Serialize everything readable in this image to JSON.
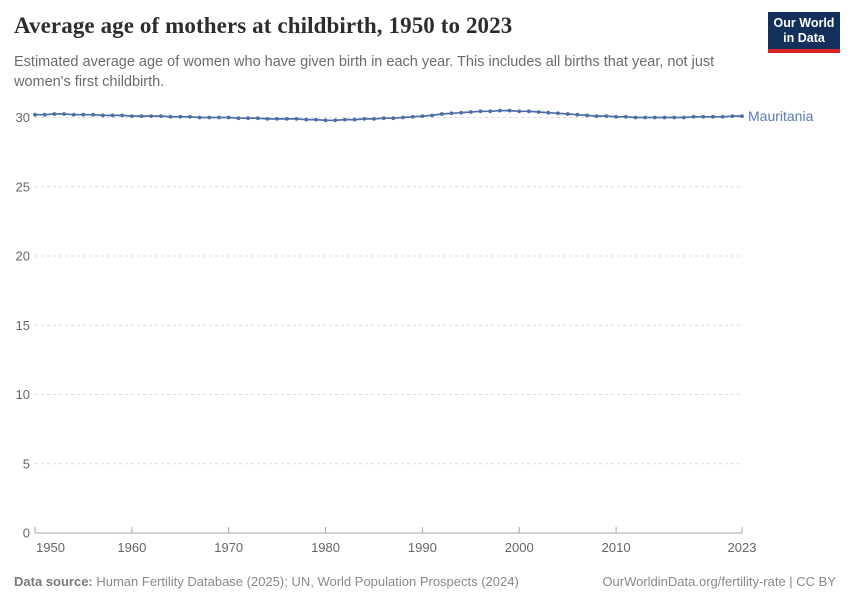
{
  "header": {
    "title": "Average age of mothers at childbirth, 1950 to 2023",
    "subtitle": "Estimated average age of women who have given birth in each year. This includes all births that year, not just women's first childbirth."
  },
  "logo": {
    "line1": "Our World",
    "line2": "in Data",
    "bg_color": "#12305b",
    "accent_color": "#dc2427"
  },
  "footer": {
    "source_label": "Data source:",
    "sources": " Human Fertility Database (2025); UN, World Population Prospects (2024)",
    "right": "OurWorldinData.org/fertility-rate | CC BY"
  },
  "chart_data": {
    "type": "line",
    "title": "Average age of mothers at childbirth, 1950 to 2023",
    "xlabel": "",
    "ylabel": "",
    "ylim": [
      0,
      30
    ],
    "yticks": [
      0,
      5,
      10,
      15,
      20,
      25,
      30
    ],
    "xticks": [
      1950,
      1960,
      1970,
      1980,
      1990,
      2000,
      2010,
      2023
    ],
    "grid": "dashed-horizontal",
    "legend_position": "inline-right",
    "gridline_color": "#dcdcdc",
    "axis_color": "#a5a5a5",
    "tick_label_color": "#666666",
    "x": [
      1950,
      1951,
      1952,
      1953,
      1954,
      1955,
      1956,
      1957,
      1958,
      1959,
      1960,
      1961,
      1962,
      1963,
      1964,
      1965,
      1966,
      1967,
      1968,
      1969,
      1970,
      1971,
      1972,
      1973,
      1974,
      1975,
      1976,
      1977,
      1978,
      1979,
      1980,
      1981,
      1982,
      1983,
      1984,
      1985,
      1986,
      1987,
      1988,
      1989,
      1990,
      1991,
      1992,
      1993,
      1994,
      1995,
      1996,
      1997,
      1998,
      1999,
      2000,
      2001,
      2002,
      2003,
      2004,
      2005,
      2006,
      2007,
      2008,
      2009,
      2010,
      2011,
      2012,
      2013,
      2014,
      2015,
      2016,
      2017,
      2018,
      2019,
      2020,
      2021,
      2022,
      2023
    ],
    "series": [
      {
        "name": "Mauritania",
        "color": "#4c6ea9",
        "label_color": "#5b7ab1",
        "values": [
          30.2,
          30.2,
          30.25,
          30.25,
          30.2,
          30.2,
          30.2,
          30.15,
          30.15,
          30.15,
          30.1,
          30.1,
          30.1,
          30.1,
          30.05,
          30.05,
          30.05,
          30.0,
          30.0,
          30.0,
          30.0,
          29.95,
          29.95,
          29.95,
          29.9,
          29.9,
          29.9,
          29.9,
          29.85,
          29.85,
          29.8,
          29.8,
          29.85,
          29.85,
          29.9,
          29.9,
          29.95,
          29.95,
          30.0,
          30.05,
          30.1,
          30.15,
          30.25,
          30.3,
          30.35,
          30.4,
          30.45,
          30.45,
          30.5,
          30.5,
          30.45,
          30.45,
          30.4,
          30.35,
          30.3,
          30.25,
          30.2,
          30.15,
          30.1,
          30.1,
          30.05,
          30.05,
          30.0,
          30.0,
          30.0,
          30.0,
          30.0,
          30.0,
          30.05,
          30.05,
          30.05,
          30.05,
          30.1,
          30.1
        ]
      }
    ]
  }
}
